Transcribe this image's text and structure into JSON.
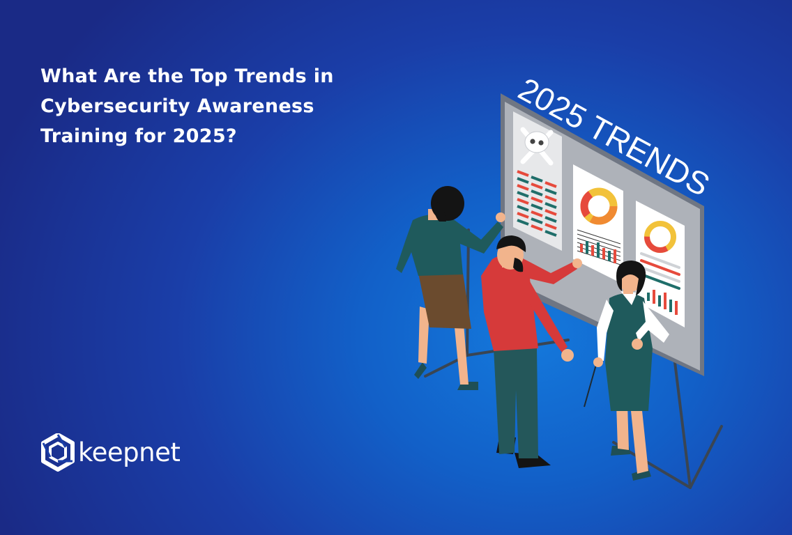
{
  "hero": {
    "title_lines": [
      "What Are the Top Trends in",
      "Cybersecurity Awareness",
      "Training for 2025?"
    ]
  },
  "board": {
    "title": "2025 TRENDS"
  },
  "brand": {
    "name": "keepnet",
    "logo_icon": "keepnet-hexagon-icon"
  },
  "colors": {
    "background_center": "#1479dc",
    "background_edge": "#1a2a86",
    "title_text": "#ffffff",
    "chart_red": "#e64a3c",
    "chart_orange": "#f08a32",
    "chart_yellow": "#f2c23a",
    "chart_teal": "#1f6e6a",
    "board_gray": "#9ea3ad"
  }
}
